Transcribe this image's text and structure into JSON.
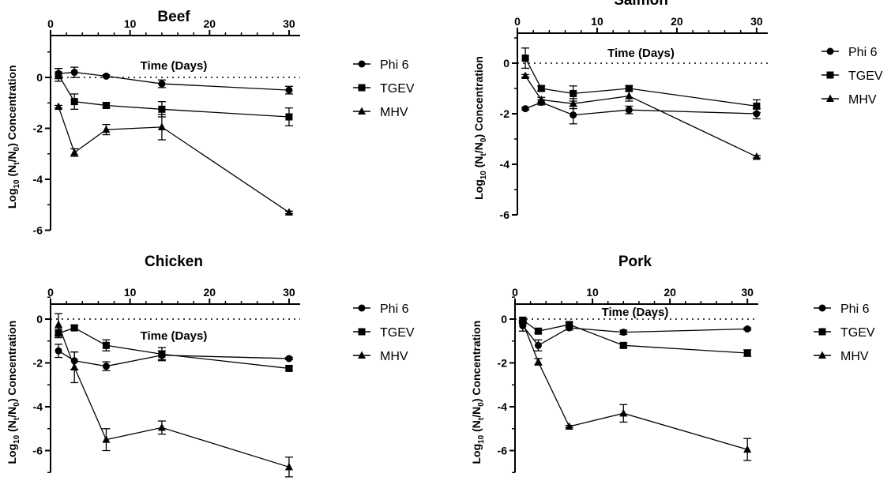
{
  "chart_data": [
    {
      "type": "line",
      "title": "Beef",
      "xlabel": "Time (Days)",
      "ylabel": "Log10 (Nt/N0) Concentration",
      "xlim": [
        0,
        31
      ],
      "ylim": [
        -6,
        1
      ],
      "xticks": [
        0,
        10,
        20,
        30
      ],
      "yticks": [
        0,
        -2,
        -4,
        -6
      ],
      "legend": "right",
      "series": [
        {
          "name": "Phi 6",
          "marker": "circle",
          "x": [
            1,
            3,
            7,
            14,
            30
          ],
          "y": [
            0.15,
            0.2,
            0.05,
            -0.25,
            -0.5
          ],
          "err": [
            0.2,
            0.2,
            0.05,
            0.15,
            0.15
          ]
        },
        {
          "name": "TGEV",
          "marker": "square",
          "x": [
            1,
            3,
            7,
            14,
            30
          ],
          "y": [
            0.1,
            -0.95,
            -1.1,
            -1.25,
            -1.55
          ],
          "err": [
            0.25,
            0.3,
            0.1,
            0.3,
            0.35
          ]
        },
        {
          "name": "MHV",
          "marker": "triangle",
          "x": [
            1,
            3,
            7,
            14,
            30
          ],
          "y": [
            -1.15,
            -2.95,
            -2.05,
            -1.95,
            -5.3
          ],
          "err": [
            0.05,
            0.15,
            0.2,
            0.5,
            0.05
          ]
        }
      ]
    },
    {
      "type": "line",
      "title": "Salmon",
      "xlabel": "Time (Days)",
      "ylabel": "Log10 (Nt/N0) Concentration",
      "xlim": [
        0,
        31
      ],
      "ylim": [
        -6,
        1
      ],
      "xticks": [
        0,
        10,
        20,
        30
      ],
      "yticks": [
        0,
        -2,
        -4,
        -6
      ],
      "legend": "right",
      "series": [
        {
          "name": "Phi 6",
          "marker": "circle",
          "x": [
            1,
            3,
            7,
            14,
            30
          ],
          "y": [
            -1.8,
            -1.55,
            -2.05,
            -1.85,
            -2.0
          ],
          "err": [
            0.05,
            0.1,
            0.35,
            0.15,
            0.2
          ]
        },
        {
          "name": "TGEV",
          "marker": "square",
          "x": [
            1,
            3,
            7,
            14,
            30
          ],
          "y": [
            0.2,
            -1.0,
            -1.2,
            -1.0,
            -1.7
          ],
          "err": [
            0.4,
            0.1,
            0.3,
            0.1,
            0.25
          ]
        },
        {
          "name": "MHV",
          "marker": "triangle",
          "x": [
            1,
            3,
            7,
            14,
            30
          ],
          "y": [
            -0.5,
            -1.45,
            -1.6,
            -1.3,
            -3.7
          ],
          "err": [
            0.05,
            0.1,
            0.2,
            0.2,
            0.05
          ]
        }
      ]
    },
    {
      "type": "line",
      "title": "Chicken",
      "xlabel": "Time (Days)",
      "ylabel": "Log10 (Nt/N0) Concentration",
      "xlim": [
        0,
        31
      ],
      "ylim": [
        -7,
        1
      ],
      "xticks": [
        0,
        10,
        20,
        30
      ],
      "yticks": [
        0,
        -2,
        -4,
        -6
      ],
      "legend": "right",
      "series": [
        {
          "name": "Phi 6",
          "marker": "circle",
          "x": [
            1,
            3,
            7,
            14,
            30
          ],
          "y": [
            -1.45,
            -1.9,
            -2.15,
            -1.65,
            -1.8
          ],
          "err": [
            0.3,
            0.4,
            0.2,
            0.2,
            0.05
          ]
        },
        {
          "name": "TGEV",
          "marker": "square",
          "x": [
            1,
            3,
            7,
            14,
            30
          ],
          "y": [
            -0.65,
            -0.4,
            -1.2,
            -1.6,
            -2.25
          ],
          "err": [
            0.2,
            0.1,
            0.25,
            0.3,
            0.1
          ]
        },
        {
          "name": "MHV",
          "marker": "triangle",
          "x": [
            1,
            3,
            7,
            14,
            30
          ],
          "y": [
            -0.25,
            -2.2,
            -5.5,
            -4.95,
            -6.75
          ],
          "err": [
            0.5,
            0.7,
            0.5,
            0.3,
            0.45
          ]
        }
      ]
    },
    {
      "type": "line",
      "title": "Pork",
      "xlabel": "Time (Days)",
      "ylabel": "Log10 (Nt/N0) Concentration",
      "xlim": [
        0,
        31
      ],
      "ylim": [
        -7,
        1
      ],
      "xticks": [
        0,
        10,
        20,
        30
      ],
      "yticks": [
        0,
        -2,
        -4,
        -6
      ],
      "legend": "right",
      "series": [
        {
          "name": "Phi 6",
          "marker": "circle",
          "x": [
            1,
            3,
            7,
            14,
            30
          ],
          "y": [
            -0.3,
            -1.2,
            -0.4,
            -0.6,
            -0.45
          ],
          "err": [
            0.25,
            0.25,
            0.1,
            0.1,
            0.05
          ]
        },
        {
          "name": "TGEV",
          "marker": "square",
          "x": [
            1,
            3,
            7,
            14,
            30
          ],
          "y": [
            -0.05,
            -0.55,
            -0.25,
            -1.2,
            -1.55
          ],
          "err": [
            0.1,
            0.1,
            0.1,
            0.1,
            0.15
          ]
        },
        {
          "name": "MHV",
          "marker": "triangle",
          "x": [
            1,
            3,
            7,
            14,
            30
          ],
          "y": [
            -0.15,
            -1.95,
            -4.9,
            -4.3,
            -5.95
          ],
          "err": [
            0.05,
            0.15,
            0.05,
            0.4,
            0.5
          ]
        }
      ]
    }
  ]
}
